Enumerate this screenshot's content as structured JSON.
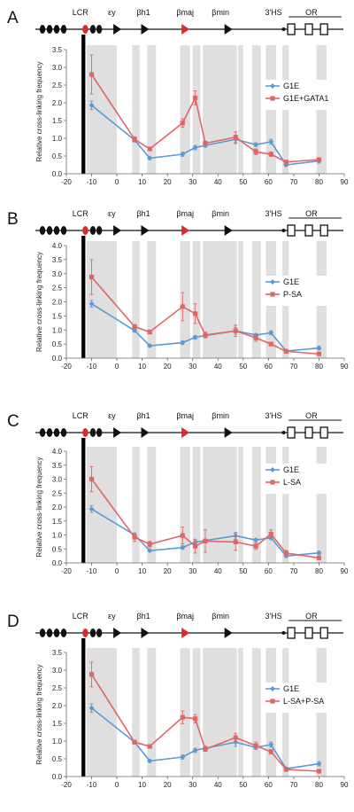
{
  "chart_data": [
    {
      "type": "line",
      "panel": "A",
      "ylabel": "Relative cross-linking frequency",
      "xlim": [
        -20,
        90
      ],
      "ylim": [
        0,
        3.5
      ],
      "ystep": 0.5,
      "x_ticks": [
        -20,
        -10,
        0,
        10,
        20,
        30,
        40,
        50,
        60,
        70,
        80,
        90
      ],
      "gene_labels": [
        "LCR",
        "εy",
        "βh1",
        "βmaj",
        "βmin",
        "3'HS",
        "OR"
      ],
      "series": [
        {
          "name": "G1E",
          "color": "#5b9bd5",
          "x": [
            -10,
            7,
            13,
            26,
            31,
            35,
            47,
            55,
            61,
            67,
            80
          ],
          "y": [
            1.93,
            0.95,
            0.44,
            0.55,
            0.74,
            0.8,
            0.97,
            0.82,
            0.9,
            0.25,
            0.36
          ],
          "err": [
            0.12,
            0.05,
            0.04,
            0.06,
            0.06,
            0.05,
            0.12,
            0.05,
            0.07,
            0.04,
            0.06
          ]
        },
        {
          "name": "G1E+GATA1",
          "color": "#e06666",
          "x": [
            -10,
            7,
            13,
            26,
            31,
            35,
            47,
            55,
            61,
            67,
            80
          ],
          "y": [
            2.8,
            0.97,
            0.7,
            1.43,
            2.14,
            0.86,
            1.03,
            0.62,
            0.55,
            0.33,
            0.4
          ],
          "err": [
            0.55,
            0.07,
            0.05,
            0.12,
            0.2,
            0.06,
            0.15,
            0.08,
            0.06,
            0.04,
            0.05
          ]
        }
      ]
    },
    {
      "type": "line",
      "panel": "B",
      "ylabel": "Relative cross-linking frequency",
      "xlim": [
        -20,
        90
      ],
      "ylim": [
        0,
        4.0
      ],
      "ystep": 0.5,
      "x_ticks": [
        -20,
        -10,
        0,
        10,
        20,
        30,
        40,
        50,
        60,
        70,
        80,
        90
      ],
      "gene_labels": [
        "LCR",
        "εy",
        "βh1",
        "βmaj",
        "βmin",
        "3'HS",
        "OR"
      ],
      "series": [
        {
          "name": "G1E",
          "color": "#5b9bd5",
          "x": [
            -10,
            7,
            13,
            26,
            31,
            35,
            47,
            55,
            61,
            67,
            80
          ],
          "y": [
            1.93,
            0.98,
            0.44,
            0.55,
            0.74,
            0.8,
            0.97,
            0.82,
            0.9,
            0.25,
            0.36
          ],
          "err": [
            0.12,
            0.05,
            0.04,
            0.06,
            0.06,
            0.05,
            0.12,
            0.05,
            0.07,
            0.04,
            0.06
          ]
        },
        {
          "name": "P-SA",
          "color": "#e06666",
          "x": [
            -10,
            7,
            13,
            26,
            31,
            35,
            47,
            55,
            61,
            67,
            80
          ],
          "y": [
            2.88,
            1.12,
            0.93,
            1.83,
            1.58,
            0.82,
            0.97,
            0.72,
            0.5,
            0.24,
            0.15
          ],
          "err": [
            0.62,
            0.07,
            0.07,
            0.5,
            0.35,
            0.1,
            0.2,
            0.12,
            0.06,
            0.04,
            0.04
          ]
        }
      ]
    },
    {
      "type": "line",
      "panel": "C",
      "ylabel": "Relative cross-linking frequency",
      "xlim": [
        -20,
        90
      ],
      "ylim": [
        0,
        4.0
      ],
      "ystep": 0.5,
      "x_ticks": [
        -20,
        -10,
        0,
        10,
        20,
        30,
        40,
        50,
        60,
        70,
        80,
        90
      ],
      "gene_labels": [
        "LCR",
        "εy",
        "βh1",
        "βmaj",
        "βmin",
        "3'HS",
        "OR"
      ],
      "series": [
        {
          "name": "G1E",
          "color": "#5b9bd5",
          "x": [
            -10,
            7,
            13,
            26,
            31,
            35,
            47,
            55,
            61,
            67,
            80
          ],
          "y": [
            1.93,
            1.0,
            0.44,
            0.55,
            0.74,
            0.8,
            0.97,
            0.82,
            0.9,
            0.25,
            0.36
          ],
          "err": [
            0.12,
            0.07,
            0.04,
            0.06,
            0.06,
            0.05,
            0.12,
            0.05,
            0.07,
            0.04,
            0.06
          ]
        },
        {
          "name": "L-SA",
          "color": "#e06666",
          "x": [
            -10,
            7,
            13,
            26,
            31,
            35,
            47,
            55,
            61,
            67,
            80
          ],
          "y": [
            3.0,
            0.92,
            0.67,
            0.98,
            0.6,
            0.78,
            0.75,
            0.6,
            1.03,
            0.35,
            0.18
          ],
          "err": [
            0.45,
            0.15,
            0.1,
            0.3,
            0.25,
            0.4,
            0.3,
            0.12,
            0.15,
            0.1,
            0.05
          ]
        }
      ]
    },
    {
      "type": "line",
      "panel": "D",
      "ylabel": "Relative cross-linking frequency",
      "xlim": [
        -20,
        90
      ],
      "ylim": [
        0,
        3.5
      ],
      "ystep": 0.5,
      "x_ticks": [
        -20,
        -10,
        0,
        10,
        20,
        30,
        40,
        50,
        60,
        70,
        80,
        90
      ],
      "gene_labels": [
        "LCR",
        "εy",
        "βh1",
        "βmaj",
        "βmin",
        "3'HS",
        "OR"
      ],
      "series": [
        {
          "name": "G1E",
          "color": "#5b9bd5",
          "x": [
            -10,
            7,
            13,
            26,
            31,
            35,
            47,
            55,
            61,
            67,
            80
          ],
          "y": [
            1.93,
            0.97,
            0.44,
            0.55,
            0.74,
            0.8,
            0.97,
            0.82,
            0.9,
            0.22,
            0.36
          ],
          "err": [
            0.12,
            0.05,
            0.04,
            0.06,
            0.06,
            0.05,
            0.12,
            0.05,
            0.07,
            0.04,
            0.06
          ]
        },
        {
          "name": "L-SA+P-SA",
          "color": "#e06666",
          "x": [
            -10,
            7,
            13,
            26,
            31,
            35,
            47,
            55,
            61,
            67,
            80
          ],
          "y": [
            2.88,
            0.97,
            0.85,
            1.67,
            1.63,
            0.77,
            1.1,
            0.87,
            0.7,
            0.2,
            0.15
          ],
          "err": [
            0.35,
            0.05,
            0.05,
            0.18,
            0.12,
            0.06,
            0.12,
            0.1,
            0.06,
            0.04,
            0.04
          ]
        }
      ]
    }
  ]
}
